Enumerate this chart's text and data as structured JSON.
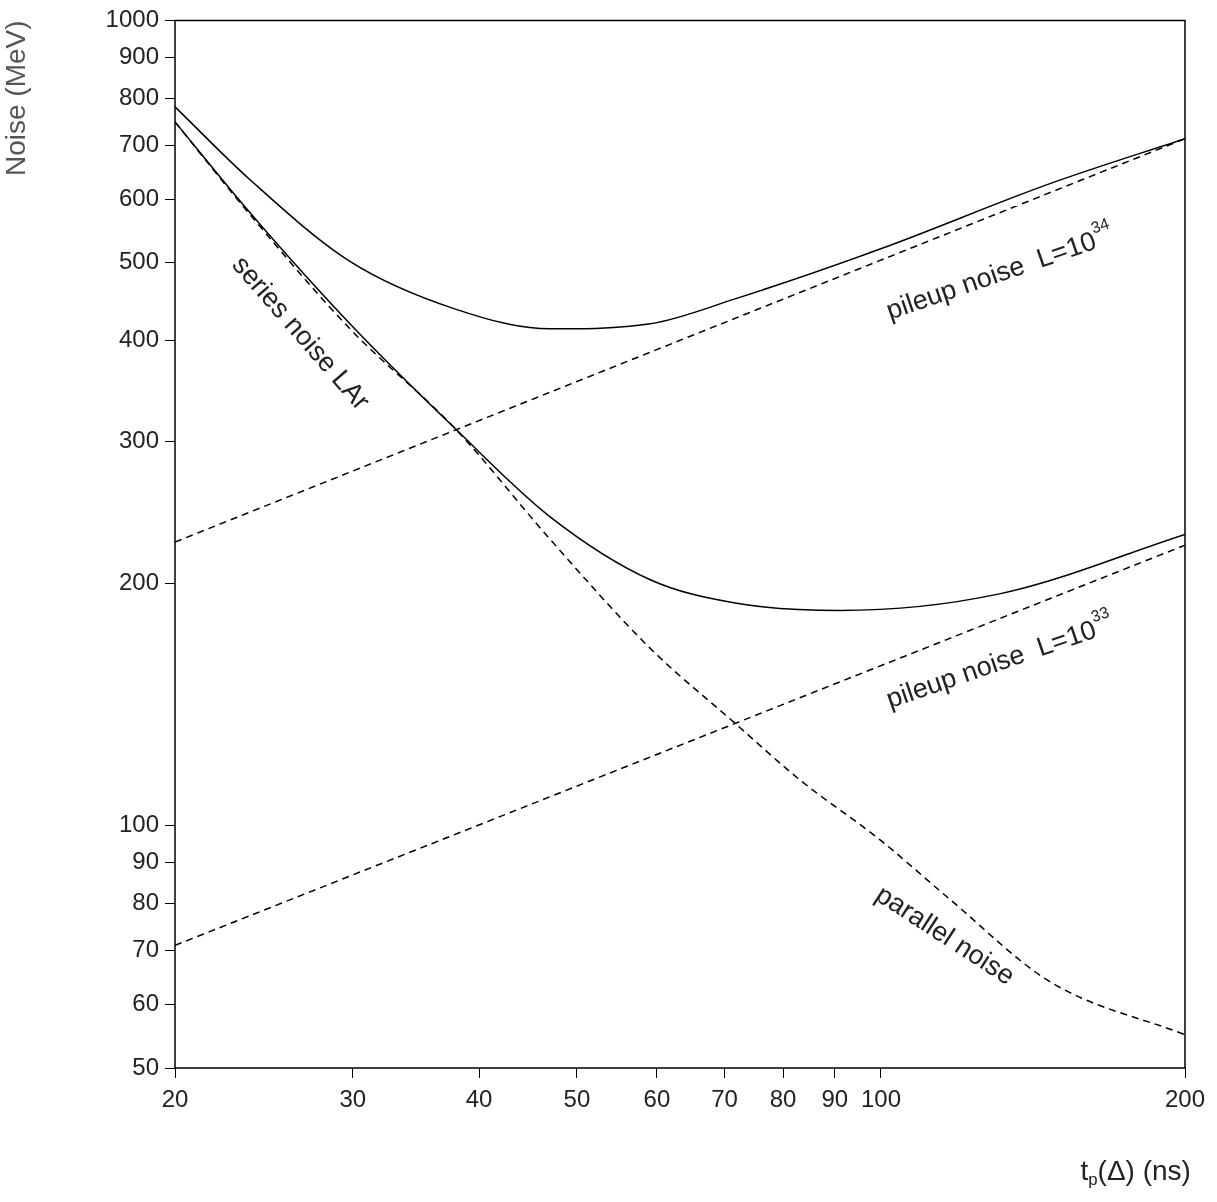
{
  "chart_data": {
    "type": "line",
    "xlabel": "t$_{p}$(Δ) (ns)",
    "ylabel": "Noise (MeV)",
    "log": "xy",
    "grid": false,
    "legend": false,
    "xlim": [
      20,
      200
    ],
    "ylim": [
      50,
      1000
    ],
    "xticks": [
      20,
      30,
      40,
      50,
      60,
      70,
      80,
      90,
      100,
      200
    ],
    "yticks": [
      50,
      60,
      70,
      80,
      90,
      100,
      200,
      300,
      400,
      500,
      600,
      700,
      800,
      900,
      1000
    ],
    "series": [
      {
        "color": "#000000",
        "line_style": "dashed",
        "x": [
          20,
          23.7,
          29.8,
          37.9,
          47.0,
          59.1,
          71.7,
          83.1,
          99.8,
          117,
          147,
          200
        ],
        "values": [
          748,
          575,
          414,
          311,
          227,
          166,
          134,
          114,
          96,
          81,
          64,
          55
        ]
      },
      {
        "color": "#000000",
        "line_style": "dashed",
        "x": [
          20,
          200
        ],
        "values": [
          225,
          713
        ]
      },
      {
        "color": "#000000",
        "line_style": "dashed",
        "x": [
          20,
          200
        ],
        "values": [
          71,
          223
        ]
      },
      {
        "color": "#000000",
        "line_style": "solid",
        "x": [
          20,
          23.7,
          29.8,
          37.9,
          47.0,
          59.1,
          71.7,
          99.8,
          147,
          200
        ],
        "values": [
          781,
          635,
          502,
          438,
          414,
          420,
          451,
          520,
          627,
          713
        ]
      },
      {
        "color": "#000000",
        "line_style": "solid",
        "x": [
          20,
          23.7,
          29.8,
          37.9,
          47.0,
          59.1,
          71.7,
          91,
          131,
          200
        ],
        "values": [
          748,
          578,
          420,
          311,
          242,
          202,
          189,
          185,
          194,
          230
        ]
      }
    ],
    "annotations": [
      "series noise LAr",
      "parallel noise",
      "pileup noise  L=10$^{34}$",
      "pileup noise  L=10$^{33}$"
    ]
  }
}
